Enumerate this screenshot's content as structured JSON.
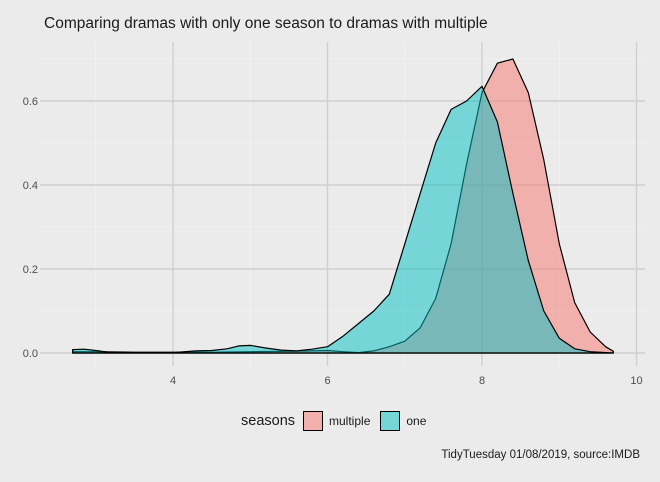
{
  "chart_data": {
    "type": "area",
    "title": "Comparing dramas with only one season to dramas with multiple",
    "xlabel": "",
    "ylabel": "",
    "xlim": [
      2.55,
      9.95
    ],
    "ylim": [
      0,
      0.7
    ],
    "xticks": [
      4,
      6,
      8,
      10
    ],
    "yticks": [
      0.0,
      0.2,
      0.4,
      0.6
    ],
    "xtick_labels": [
      "4",
      "6",
      "8",
      "10"
    ],
    "ytick_labels": [
      "0.0",
      "0.2",
      "0.4",
      "0.6"
    ],
    "grid": true,
    "legend": {
      "title": "seasons",
      "position": "bottom",
      "entries": [
        "multiple",
        "one"
      ]
    },
    "caption": "TidyTuesday 01/08/2019, source:IMDB",
    "series": [
      {
        "name": "multiple",
        "color": "#F8766D",
        "x": [
          2.7,
          3.0,
          3.5,
          4.0,
          4.5,
          5.0,
          5.5,
          6.0,
          6.2,
          6.4,
          6.6,
          6.8,
          7.0,
          7.2,
          7.4,
          7.6,
          7.8,
          8.0,
          8.2,
          8.4,
          8.6,
          8.8,
          9.0,
          9.2,
          9.4,
          9.6,
          9.7
        ],
        "y": [
          0.003,
          0.003,
          0.002,
          0.002,
          0.002,
          0.003,
          0.004,
          0.006,
          0.003,
          0.001,
          0.005,
          0.015,
          0.028,
          0.06,
          0.13,
          0.26,
          0.45,
          0.62,
          0.69,
          0.7,
          0.62,
          0.46,
          0.26,
          0.12,
          0.05,
          0.015,
          0.004
        ]
      },
      {
        "name": "one",
        "color": "#00BFC4",
        "x": [
          2.7,
          2.85,
          3.0,
          3.2,
          3.5,
          3.8,
          4.0,
          4.3,
          4.5,
          4.7,
          4.85,
          5.0,
          5.2,
          5.4,
          5.6,
          5.8,
          6.0,
          6.2,
          6.4,
          6.6,
          6.8,
          7.0,
          7.2,
          7.4,
          7.6,
          7.8,
          8.0,
          8.2,
          8.4,
          8.6,
          8.8,
          9.0,
          9.2,
          9.4,
          9.7
        ],
        "y": [
          0.008,
          0.009,
          0.006,
          0.001,
          0.0,
          0.001,
          0.001,
          0.005,
          0.006,
          0.01,
          0.017,
          0.018,
          0.012,
          0.007,
          0.005,
          0.009,
          0.015,
          0.04,
          0.07,
          0.1,
          0.14,
          0.26,
          0.38,
          0.5,
          0.58,
          0.6,
          0.635,
          0.55,
          0.38,
          0.22,
          0.1,
          0.035,
          0.01,
          0.003,
          0.0
        ]
      }
    ]
  }
}
